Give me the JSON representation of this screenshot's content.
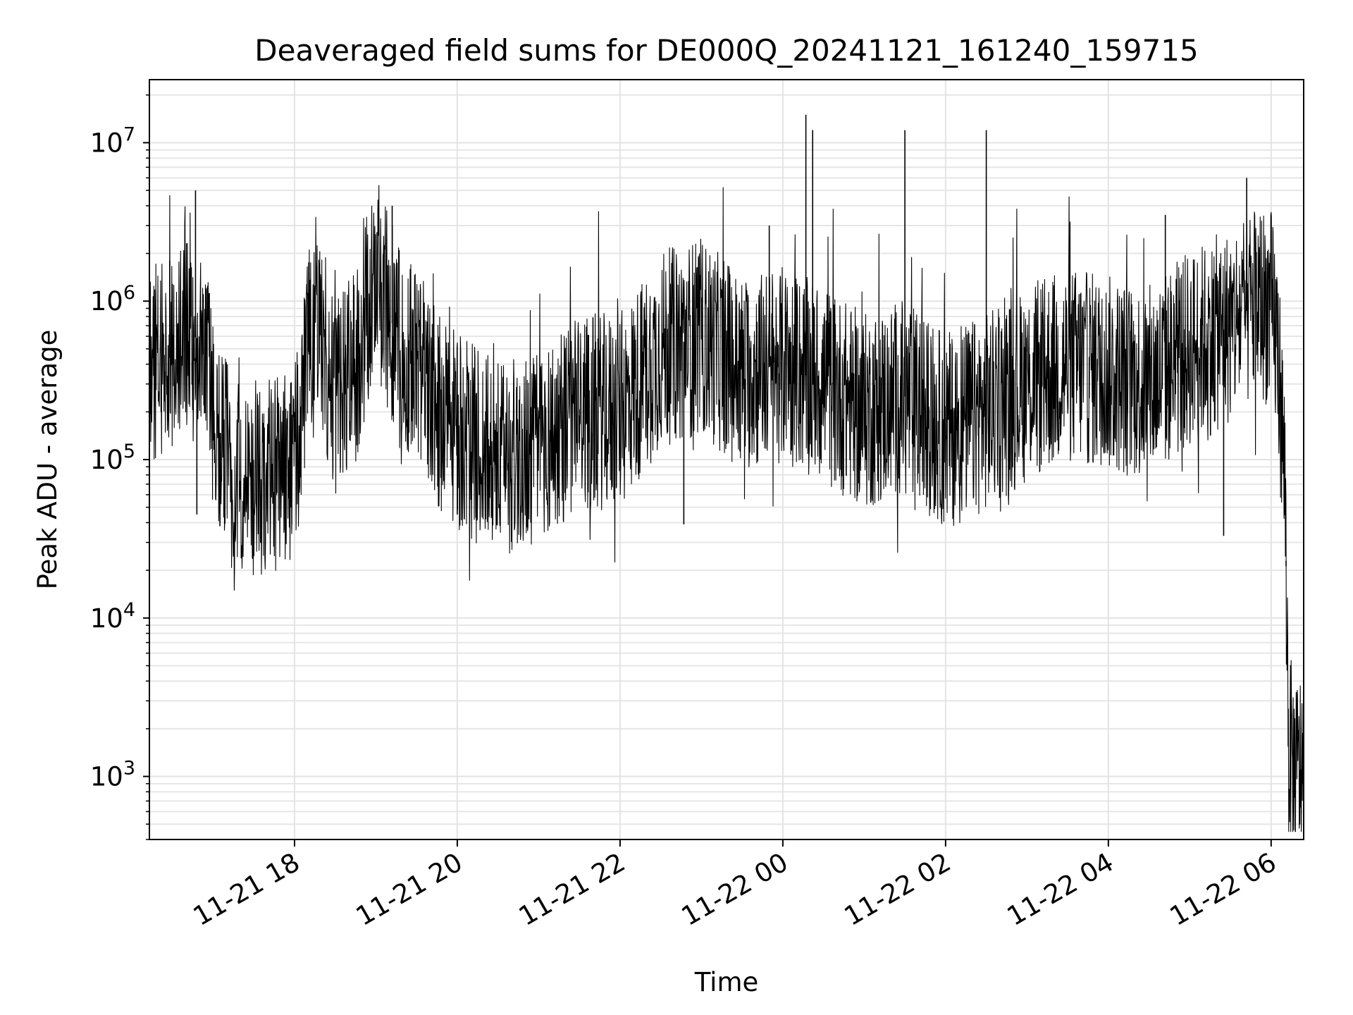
{
  "chart_data": {
    "type": "line",
    "title": "Deaveraged field sums for DE000Q_20241121_161240_159715",
    "xlabel": "Time",
    "ylabel": "Peak ADU - average",
    "x_scale": "time",
    "y_scale": "log",
    "grid": true,
    "line_color": "#000000",
    "x_ticks": [
      "11-21 18",
      "11-21 20",
      "11-21 22",
      "11-22 00",
      "11-22 02",
      "11-22 04",
      "11-22 06"
    ],
    "y_ticks": [
      {
        "base": "10",
        "exp": "3",
        "value": 1000
      },
      {
        "base": "10",
        "exp": "4",
        "value": 10000
      },
      {
        "base": "10",
        "exp": "5",
        "value": 100000
      },
      {
        "base": "10",
        "exp": "6",
        "value": 1000000
      },
      {
        "base": "10",
        "exp": "7",
        "value": 10000000
      }
    ],
    "xlim": [
      "2024-11-21 16:13",
      "2024-11-22 06:24"
    ],
    "ylim": [
      400,
      25000000
    ],
    "series": [
      {
        "x": [
          "2024-11-21 16:13",
          "2024-11-21 16:30",
          "2024-11-21 16:45",
          "2024-11-21 16:55",
          "2024-11-21 17:00",
          "2024-11-21 17:15",
          "2024-11-21 17:30",
          "2024-11-21 17:45",
          "2024-11-21 18:00",
          "2024-11-21 18:15",
          "2024-11-21 18:30",
          "2024-11-21 18:45",
          "2024-11-21 19:00",
          "2024-11-21 19:15",
          "2024-11-21 19:30",
          "2024-11-21 19:45",
          "2024-11-21 20:00",
          "2024-11-21 20:30",
          "2024-11-21 21:00",
          "2024-11-21 21:30",
          "2024-11-21 22:00",
          "2024-11-21 22:30",
          "2024-11-21 23:00",
          "2024-11-21 23:30",
          "2024-11-22 00:00",
          "2024-11-22 00:30",
          "2024-11-22 01:00",
          "2024-11-22 01:30",
          "2024-11-22 02:00",
          "2024-11-22 02:30",
          "2024-11-22 03:00",
          "2024-11-22 03:30",
          "2024-11-22 04:00",
          "2024-11-22 04:30",
          "2024-11-22 05:00",
          "2024-11-22 05:30",
          "2024-11-22 05:50",
          "2024-11-22 06:00",
          "2024-11-22 06:05",
          "2024-11-22 06:10",
          "2024-11-22 06:13",
          "2024-11-22 06:18",
          "2024-11-22 06:24"
        ],
        "values": [
          400000,
          450000,
          600000,
          550000,
          200000,
          80000,
          75000,
          80000,
          90000,
          1000000,
          250000,
          400000,
          1500000,
          600000,
          400000,
          200000,
          150000,
          100000,
          120000,
          200000,
          200000,
          500000,
          600000,
          350000,
          400000,
          300000,
          200000,
          250000,
          150000,
          200000,
          300000,
          400000,
          350000,
          300000,
          500000,
          700000,
          1000000,
          900000,
          500000,
          80000,
          1500,
          1000,
          1200
        ],
        "spikes": [
          {
            "x": "2024-11-21 16:28",
            "value": 1800000
          },
          {
            "x": "2024-11-21 16:47",
            "value": 5000000
          },
          {
            "x": "2024-11-21 16:48",
            "value": 45000
          },
          {
            "x": "2024-11-21 17:05",
            "value": 38000
          },
          {
            "x": "2024-11-21 19:12",
            "value": 4000000
          },
          {
            "x": "2024-11-21 20:00",
            "value": 45000
          },
          {
            "x": "2024-11-21 22:47",
            "value": 39000
          },
          {
            "x": "2024-11-21 23:50",
            "value": 3000000
          },
          {
            "x": "2024-11-22 00:17",
            "value": 15000000
          },
          {
            "x": "2024-11-22 00:22",
            "value": 12000000
          },
          {
            "x": "2024-11-22 01:30",
            "value": 12000000
          },
          {
            "x": "2024-11-22 02:30",
            "value": 12000000
          },
          {
            "x": "2024-11-22 04:42",
            "value": 3500000
          },
          {
            "x": "2024-11-22 05:25",
            "value": 33000
          },
          {
            "x": "2024-11-22 05:42",
            "value": 6000000
          },
          {
            "x": "2024-11-22 06:11",
            "value": 23000
          },
          {
            "x": "2024-11-22 06:21",
            "value": 620
          }
        ]
      }
    ]
  }
}
